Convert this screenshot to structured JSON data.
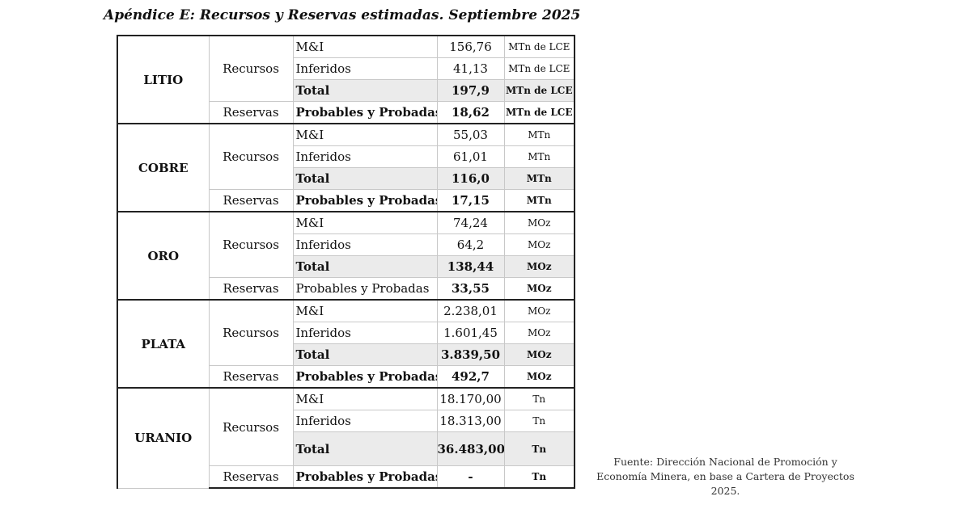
{
  "title": "Apéndice E: Recursos y Reservas estimadas. Septiembre 2025",
  "table": {
    "groups": [
      {
        "mineral": "LITIO",
        "recursos_label": "Recursos",
        "reservas_label": "Reservas",
        "mi": {
          "label": "M&I",
          "value": "156,76",
          "unit": "MTn de LCE"
        },
        "inf": {
          "label": "Inferidos",
          "value": "41,13",
          "unit": "MTn de LCE"
        },
        "total": {
          "label": "Total",
          "value": "197,9",
          "unit": "MTn de LCE"
        },
        "pp": {
          "label": "Probables y Probadas",
          "value": "18,62",
          "unit": "MTn de LCE"
        }
      },
      {
        "mineral": "COBRE",
        "recursos_label": "Recursos",
        "reservas_label": "Reservas",
        "mi": {
          "label": "M&I",
          "value": "55,03",
          "unit": "MTn"
        },
        "inf": {
          "label": "Inferidos",
          "value": "61,01",
          "unit": "MTn"
        },
        "total": {
          "label": "Total",
          "value": "116,0",
          "unit": "MTn"
        },
        "pp": {
          "label": "Probables y Probadas",
          "value": "17,15",
          "unit": "MTn"
        }
      },
      {
        "mineral": "ORO",
        "recursos_label": "Recursos",
        "reservas_label": "Reservas",
        "mi": {
          "label": "M&I",
          "value": "74,24",
          "unit": "MOz"
        },
        "inf": {
          "label": "Inferidos",
          "value": "64,2",
          "unit": "MOz"
        },
        "total": {
          "label": "Total",
          "value": "138,44",
          "unit": "MOz"
        },
        "pp": {
          "label": "Probables y Probadas",
          "value": "33,55",
          "unit": "MOz"
        }
      },
      {
        "mineral": "PLATA",
        "recursos_label": "Recursos",
        "reservas_label": "Reservas",
        "mi": {
          "label": "M&I",
          "value": "2.238,01",
          "unit": "MOz"
        },
        "inf": {
          "label": "Inferidos",
          "value": "1.601,45",
          "unit": "MOz"
        },
        "total": {
          "label": "Total",
          "value": "3.839,50",
          "unit": "MOz"
        },
        "pp": {
          "label": "Probables y Probadas",
          "value": "492,7",
          "unit": "MOz"
        }
      },
      {
        "mineral": "URANIO",
        "recursos_label": "Recursos",
        "reservas_label": "Reservas",
        "mi": {
          "label": "M&I",
          "value": "18.170,00",
          "unit": "Tn"
        },
        "inf": {
          "label": "Inferidos",
          "value": "18.313,00",
          "unit": "Tn"
        },
        "total": {
          "label": "Total",
          "value": "36.483,00",
          "unit": "Tn"
        },
        "pp": {
          "label": "Probables y Probadas",
          "value": "-",
          "unit": "Tn"
        }
      }
    ]
  },
  "source": "Fuente: Dirección Nacional de Promoción y Economía Minera, en base a Cartera de Proyectos 2025."
}
